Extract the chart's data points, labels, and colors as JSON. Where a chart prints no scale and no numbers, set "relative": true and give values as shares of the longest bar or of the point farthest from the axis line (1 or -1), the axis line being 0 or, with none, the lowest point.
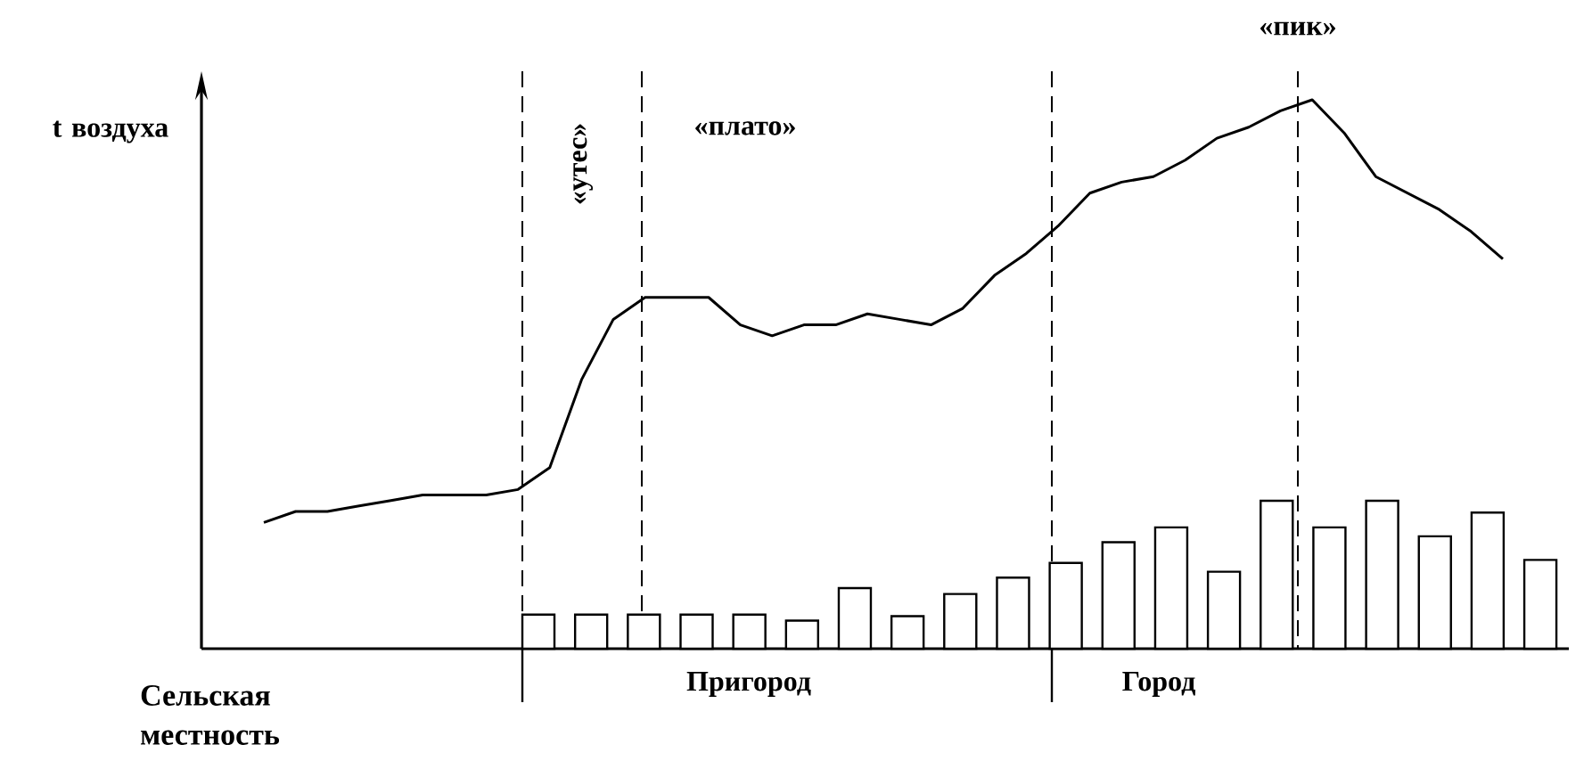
{
  "chart_data": [
    {
      "type": "line",
      "relative": true,
      "ylabel": "t воздуха",
      "categories": [
        null,
        null,
        null,
        null,
        null,
        null,
        null,
        null,
        null,
        null,
        null,
        null,
        null,
        null,
        null,
        null,
        null,
        null,
        null,
        null,
        null,
        null,
        null,
        null,
        null,
        null,
        null,
        null,
        null,
        null,
        null,
        null,
        null,
        null,
        null,
        null,
        null,
        null,
        null,
        null
      ],
      "series": [
        {
          "color": "#000000",
          "values": [
            0.23,
            0.25,
            0.25,
            0.26,
            0.27,
            0.28,
            0.28,
            0.28,
            0.29,
            0.33,
            0.49,
            0.6,
            0.64,
            0.64,
            0.64,
            0.59,
            0.57,
            0.59,
            0.59,
            0.61,
            0.6,
            0.59,
            0.62,
            0.68,
            0.72,
            0.77,
            0.83,
            0.85,
            0.86,
            0.89,
            0.93,
            0.95,
            0.98,
            1.0,
            0.94,
            0.86,
            0.83,
            0.8,
            0.76,
            0.71
          ]
        }
      ],
      "annotations": [
        "«утес»",
        "«плато»",
        "«пик»",
        "Сельская местность",
        "Пригород",
        "Город"
      ]
    },
    {
      "type": "bar",
      "relative": true,
      "categories": [
        null,
        null,
        null,
        null,
        null,
        null,
        null,
        null,
        null,
        null,
        null,
        null,
        null,
        null,
        null,
        null,
        null,
        null,
        null,
        null
      ],
      "series": [
        {
          "color": "#ffffff",
          "values": [
            0.23,
            0.23,
            0.23,
            0.23,
            0.23,
            0.19,
            0.41,
            0.22,
            0.37,
            0.48,
            0.58,
            0.72,
            0.82,
            0.52,
            1.0,
            0.82,
            1.0,
            0.76,
            0.92,
            0.6
          ]
        }
      ]
    }
  ]
}
